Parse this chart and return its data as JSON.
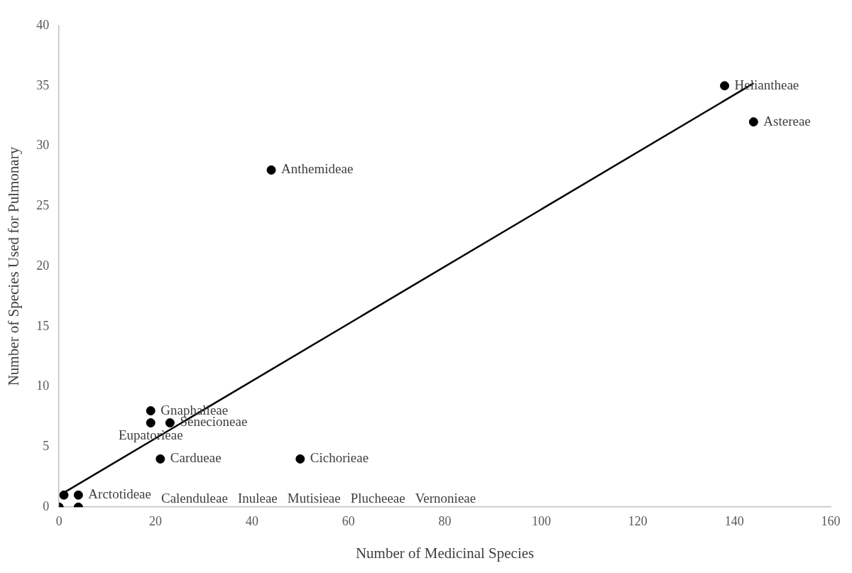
{
  "chart_data": {
    "type": "scatter",
    "xlabel": "Number of Medicinal Species",
    "ylabel": "Number of Species Used for Pulmonary",
    "xlim": [
      0,
      160
    ],
    "xticks": [
      0,
      20,
      40,
      60,
      80,
      100,
      120,
      140,
      160
    ],
    "ylim": [
      0,
      40
    ],
    "yticks": [
      0,
      5,
      10,
      15,
      20,
      25,
      30,
      35,
      40
    ],
    "grid": false,
    "legend": false,
    "series": [
      {
        "color": "#000000",
        "marker": "circle",
        "x": [
          138,
          144,
          44,
          19,
          19,
          23,
          21,
          50,
          1,
          4,
          0,
          4
        ],
        "values": [
          35,
          32,
          28,
          8,
          7,
          7,
          4,
          4,
          1,
          1,
          0,
          0
        ]
      },
      {
        "type": "line",
        "marker": "none",
        "color": "#000000",
        "x": [
          1,
          144
        ],
        "values": [
          1.2,
          35.2
        ]
      }
    ],
    "annotations": [
      {
        "text": "Heliantheae",
        "x": 138,
        "y": 35
      },
      {
        "text": "Astereae",
        "x": 144,
        "y": 32
      },
      {
        "text": "Anthemideae",
        "x": 44,
        "y": 28
      },
      {
        "text": "Gnaphalieae",
        "x": 19,
        "y": 8
      },
      {
        "text": "Senecioneae",
        "x": 23,
        "y": 7
      },
      {
        "text": "Eupatorieae",
        "x": 19,
        "y": 7
      },
      {
        "text": "Cardueae",
        "x": 21,
        "y": 4
      },
      {
        "text": "Cichorieae",
        "x": 50,
        "y": 4
      },
      {
        "text": "Arctotideae",
        "x": 4,
        "y": 1
      },
      "Calenduleae",
      "Inuleae",
      "Mutisieae",
      "Plucheeae",
      "Vernonieae"
    ]
  }
}
